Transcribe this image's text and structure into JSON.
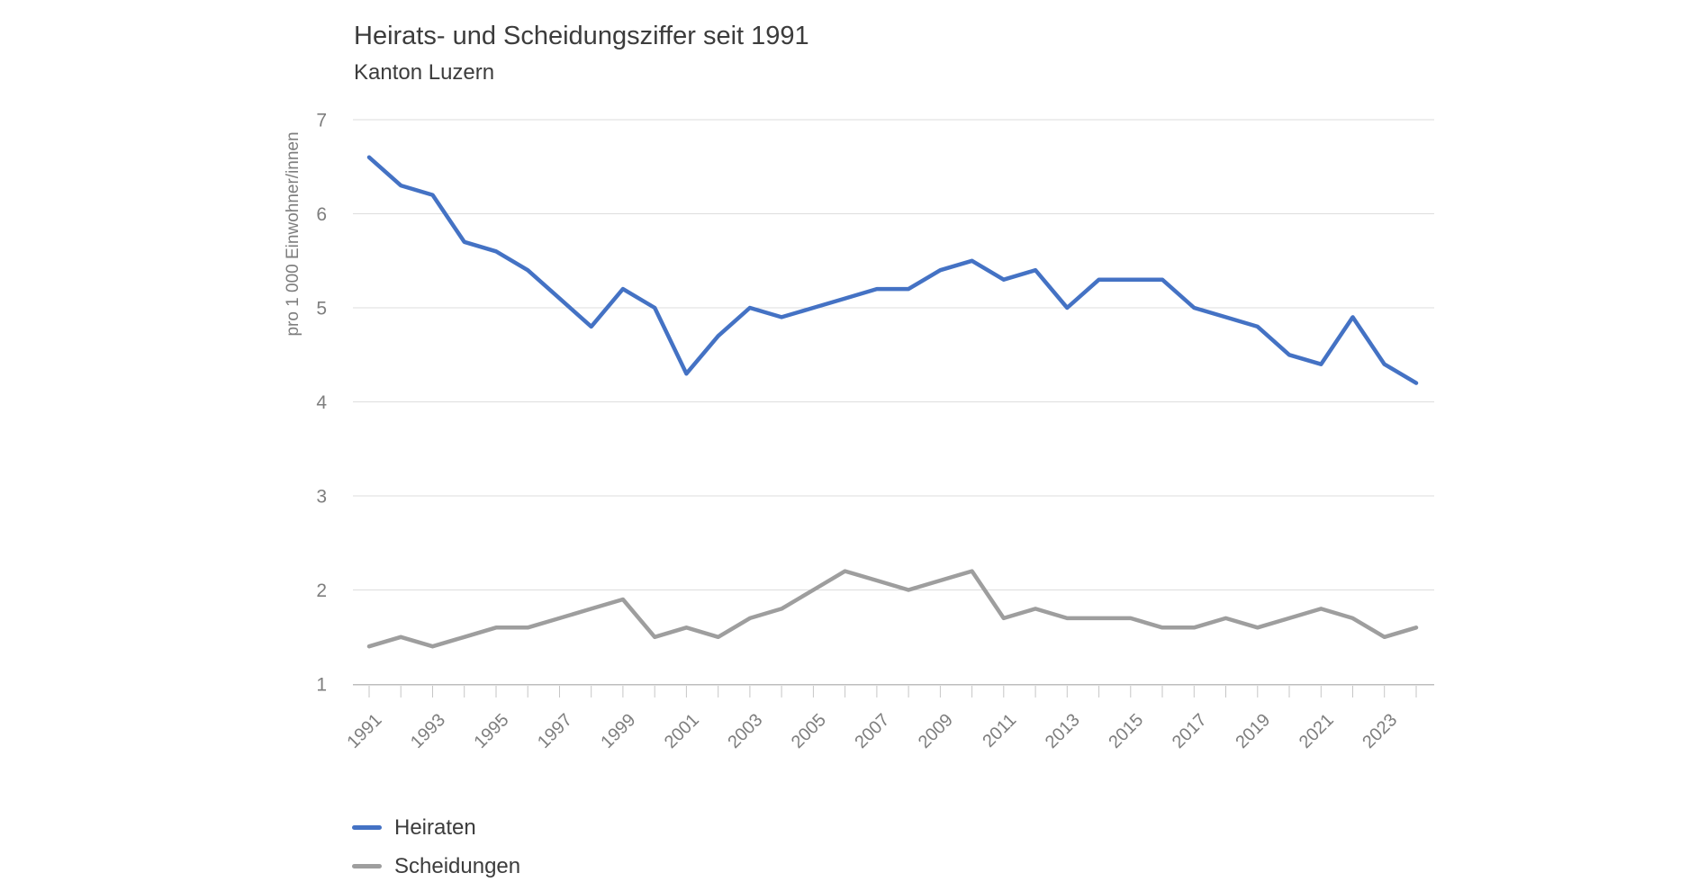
{
  "chart_data": {
    "type": "line",
    "title": "Heirats- und Scheidungsziffer seit 1991",
    "subtitle": "Kanton Luzern",
    "xlabel": "",
    "ylabel": "pro 1 000 Einwohner/innen",
    "ylim": [
      1,
      7
    ],
    "y_ticks": [
      1,
      2,
      3,
      4,
      5,
      6,
      7
    ],
    "grid": true,
    "legend_position": "bottom-left",
    "x": [
      1991,
      1992,
      1993,
      1994,
      1995,
      1996,
      1997,
      1998,
      1999,
      2000,
      2001,
      2002,
      2003,
      2004,
      2005,
      2006,
      2007,
      2008,
      2009,
      2010,
      2011,
      2012,
      2013,
      2014,
      2015,
      2016,
      2017,
      2018,
      2019,
      2020,
      2021,
      2022,
      2023,
      2024
    ],
    "x_tick_labels": [
      "1991",
      "1993",
      "1995",
      "1997",
      "1999",
      "2001",
      "2003",
      "2005",
      "2007",
      "2009",
      "2011",
      "2013",
      "2015",
      "2017",
      "2019",
      "2021",
      "2023"
    ],
    "series": [
      {
        "name": "Heiraten",
        "color": "#4472C4",
        "values": [
          6.6,
          6.3,
          6.2,
          5.7,
          5.6,
          5.4,
          5.1,
          4.8,
          5.2,
          5.0,
          4.3,
          4.7,
          5.0,
          4.9,
          5.0,
          5.1,
          5.2,
          5.2,
          5.4,
          5.5,
          5.3,
          5.4,
          5.0,
          5.3,
          5.3,
          5.3,
          5.0,
          4.9,
          4.8,
          4.5,
          4.4,
          4.9,
          4.4,
          4.2
        ]
      },
      {
        "name": "Scheidungen",
        "color": "#9E9E9E",
        "values": [
          1.4,
          1.5,
          1.4,
          1.5,
          1.6,
          1.6,
          1.7,
          1.8,
          1.9,
          1.5,
          1.6,
          1.5,
          1.7,
          1.8,
          2.0,
          2.2,
          2.1,
          2.0,
          2.1,
          2.2,
          1.7,
          1.8,
          1.7,
          1.7,
          1.7,
          1.6,
          1.6,
          1.7,
          1.6,
          1.7,
          1.8,
          1.7,
          1.5,
          1.6
        ]
      }
    ]
  },
  "colors": {
    "gridline": "#DEDEDE",
    "axis_line": "#BEBEBE",
    "tick_mark": "#C6C6C6",
    "axis_text": "#7E7E7E",
    "title_text": "#3C3C3C",
    "background": "#FFFFFF"
  }
}
